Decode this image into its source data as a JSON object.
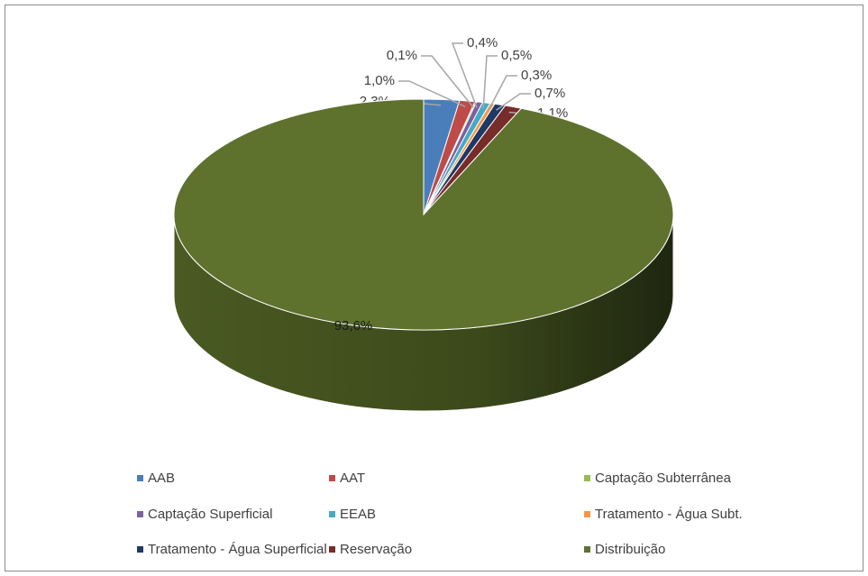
{
  "chart_data": {
    "type": "pie",
    "categories": [
      "AAB",
      "AAT",
      "Captação Subterrânea",
      "Captação Superficial",
      "EEAB",
      "Tratamento - Água Subt.",
      "Tratamento - Água Superficial",
      "Reservação",
      "Distribuição"
    ],
    "values": [
      2.3,
      1.0,
      0.1,
      0.4,
      0.5,
      0.3,
      0.7,
      1.1,
      93.6
    ],
    "value_labels": [
      "2,3%",
      "1,0%",
      "0,1%",
      "0,4%",
      "0,5%",
      "0,3%",
      "0,7%",
      "1,1%",
      "93,6%"
    ],
    "colors": [
      "#4a7ebb",
      "#be4b48",
      "#98b954",
      "#7d60a0",
      "#46aac5",
      "#f79646",
      "#1f3864",
      "#772c2a",
      "#5e722d"
    ],
    "legend": "bottom"
  }
}
